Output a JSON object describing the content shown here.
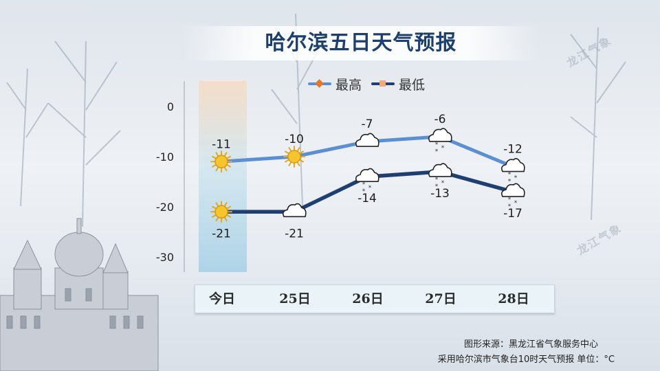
{
  "title": "哈尔滨五日天气预报",
  "watermark": "龙江气象",
  "chart_data": {
    "type": "line",
    "categories": [
      "今日",
      "25日",
      "26日",
      "27日",
      "28日"
    ],
    "series": [
      {
        "name": "最高",
        "values": [
          -11,
          -10,
          -7,
          -6,
          -12
        ],
        "color": "#5b8fd2"
      },
      {
        "name": "最低",
        "values": [
          -21,
          -21,
          -14,
          -13,
          -17
        ],
        "color": "#1f3f72"
      }
    ],
    "ylim": [
      -30,
      0
    ],
    "yticks": [
      "0",
      "-10",
      "-20",
      "-30"
    ],
    "weather_icons": {
      "high": [
        "sun-icon",
        "sun-icon",
        "cloud-icon",
        "cloud-snow-icon",
        "cloud-snow-icon"
      ],
      "low": [
        "sun-icon",
        "cloud-icon",
        "cloud-snow-icon",
        "cloud-snow-icon",
        "cloud-snow-icon"
      ]
    },
    "legend_position": "top"
  },
  "source": "图形来源：黑龙江省气象服务中心",
  "note": "采用哈尔滨市气象台10时天气预报 单位：°C"
}
